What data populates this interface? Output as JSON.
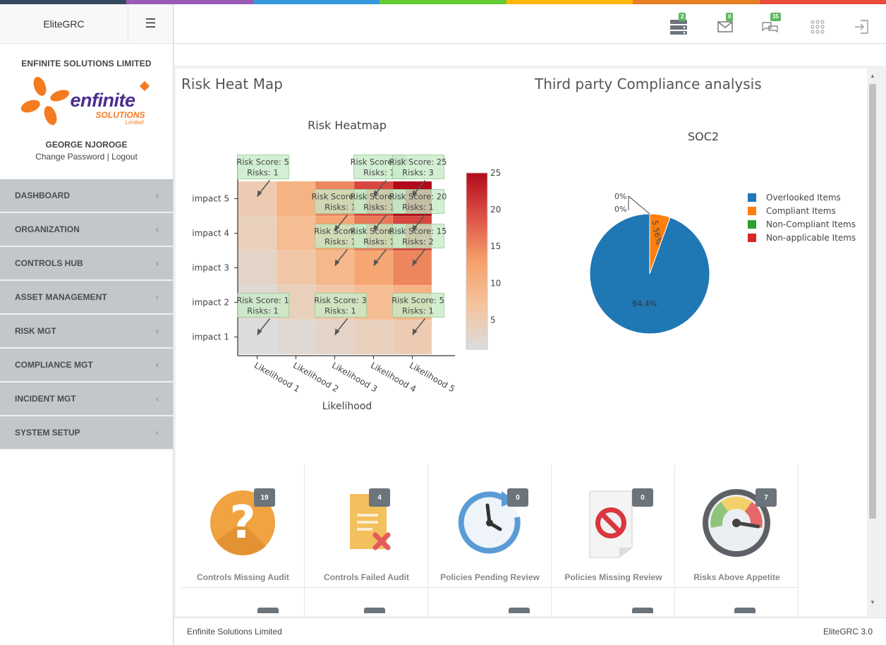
{
  "stripe_colors": [
    "#34495e",
    "#9b59b6",
    "#3498db",
    "#62cb31",
    "#ffb606",
    "#e67e22",
    "#e74c3c"
  ],
  "app": {
    "brand": "EliteGRC"
  },
  "sidebar": {
    "org_name": "ENFINITE SOLUTIONS LIMITED",
    "logo": {
      "word": "enfinite",
      "sub1": "SOLUTIONS",
      "sub2": "Limited"
    },
    "user_name": "GEORGE NJOROGE",
    "change_password": "Change Password",
    "separator": "|",
    "logout": "Logout",
    "items": [
      {
        "label": "DASHBOARD",
        "icon": "chevron-left-icon"
      },
      {
        "label": "ORGANIZATION",
        "icon": "chevron-left-icon"
      },
      {
        "label": "CONTROLS HUB",
        "icon": "chevron-left-icon"
      },
      {
        "label": "ASSET MANAGEMENT",
        "icon": "chevron-left-icon"
      },
      {
        "label": "RISK MGT",
        "icon": "chevron-left-icon"
      },
      {
        "label": "COMPLIANCE MGT",
        "icon": "chevron-left-icon"
      },
      {
        "label": "INCIDENT MGT",
        "icon": "chevron-left-icon"
      },
      {
        "label": "SYSTEM SETUP",
        "icon": "chevron-left-icon"
      }
    ]
  },
  "header": {
    "server_badge": "2",
    "mail_badge": "0",
    "chat_badge": "35"
  },
  "panels": {
    "heatmap_title": "Risk Heat Map",
    "compliance_title": "Third party Compliance analysis"
  },
  "chart_data": [
    {
      "type": "heatmap",
      "title": "Risk Heatmap",
      "xlabel": "Likelihood",
      "ylabel": "",
      "x": [
        "Likelihood 1",
        "Likelihood 2",
        "Likelihood 3",
        "Likelihood 4",
        "Likelihood 5"
      ],
      "y": [
        "impact 1",
        "impact 2",
        "impact 3",
        "impact 4",
        "impact 5"
      ],
      "z": [
        [
          1,
          2,
          3,
          4,
          5
        ],
        [
          2,
          4,
          6,
          8,
          10
        ],
        [
          3,
          6,
          9,
          12,
          15
        ],
        [
          4,
          8,
          12,
          16,
          20
        ],
        [
          5,
          10,
          15,
          20,
          25
        ]
      ],
      "colorbar": {
        "range": [
          1,
          25
        ],
        "ticks": [
          "5",
          "10",
          "15",
          "20",
          "25"
        ]
      },
      "annotations": [
        {
          "x": 1,
          "y": 1,
          "score": "Risk Score: 1",
          "risks": "Risks: 1"
        },
        {
          "x": 3,
          "y": 1,
          "score": "Risk Score: 3",
          "risks": "Risks: 1"
        },
        {
          "x": 5,
          "y": 1,
          "score": "Risk Score: 5",
          "risks": "Risks: 1"
        },
        {
          "x": 3,
          "y": 3,
          "score": "Risk Score: 9",
          "risks": "Risks: 1"
        },
        {
          "x": 4,
          "y": 3,
          "score": "Risk Score: 12",
          "risks": "Risks: 1"
        },
        {
          "x": 5,
          "y": 3,
          "score": "Risk Score: 15",
          "risks": "Risks: 2"
        },
        {
          "x": 3,
          "y": 4,
          "score": "Risk Score: 12",
          "risks": "Risks: 1"
        },
        {
          "x": 4,
          "y": 4,
          "score": "Risk Score: 16",
          "risks": "Risks: 1"
        },
        {
          "x": 5,
          "y": 4,
          "score": "Risk Score: 20",
          "risks": "Risks: 1"
        },
        {
          "x": 1,
          "y": 5,
          "score": "Risk Score: 5",
          "risks": "Risks: 1"
        },
        {
          "x": 4,
          "y": 5,
          "score": "Risk Score: 20",
          "risks": "Risks: 1"
        },
        {
          "x": 5,
          "y": 5,
          "score": "Risk Score: 25",
          "risks": "Risks: 3"
        }
      ]
    },
    {
      "type": "pie",
      "title": "SOC2",
      "labels": [
        "Overlooked Items",
        "Compliant Items",
        "Non-Compliant Items",
        "Non-applicable Items"
      ],
      "values": [
        94.4,
        5.56,
        0,
        0
      ],
      "text_labels": [
        "94.4%",
        "5.56%",
        "0%",
        "0%"
      ],
      "colors": [
        "#1f77b4",
        "#ff7f0e",
        "#2ca02c",
        "#d62728"
      ],
      "legend": "right"
    }
  ],
  "tiles": [
    {
      "label": "Controls Missing Audit",
      "count": "19",
      "icon": "question-mark-icon"
    },
    {
      "label": "Controls Failed Audit",
      "count": "4",
      "icon": "document-x-icon"
    },
    {
      "label": "Policies Pending Review",
      "count": "0",
      "icon": "clock-refresh-icon"
    },
    {
      "label": "Policies Missing Review",
      "count": "0",
      "icon": "prohibited-document-icon"
    },
    {
      "label": "Risks Above Appetite",
      "count": "7",
      "icon": "gauge-icon"
    }
  ],
  "footer": {
    "left": "Enfinite Solutions Limited",
    "right": "EliteGRC 3.0"
  }
}
